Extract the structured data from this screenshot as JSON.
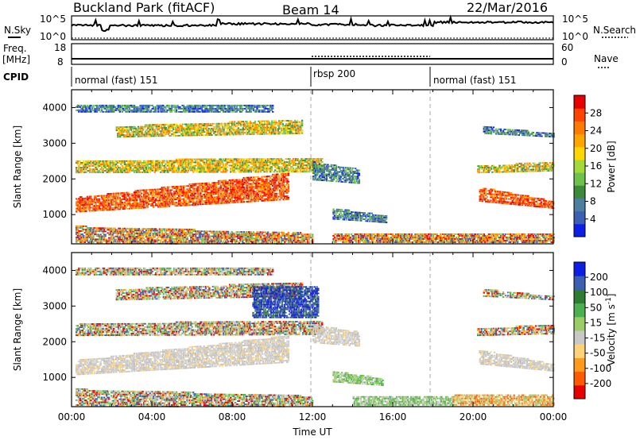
{
  "header": {
    "site_title": "Buckland Park (fitACF)",
    "beam_label": "Beam 14",
    "date_label": "22/Mar/2016"
  },
  "nsky": {
    "label": "N.Sky",
    "y_top_label": "10^5",
    "y_bottom_label": "10^0",
    "right_top_label": "10^5",
    "right_bottom_label": "10^0",
    "right_label": "N.Search"
  },
  "freq": {
    "label_line1": "Freq.",
    "label_line2": "[MHz]",
    "ticks": [
      "18",
      "8"
    ],
    "right_ticks": [
      "60",
      "0"
    ],
    "right_label": "Nave"
  },
  "cpid": {
    "label": "CPID",
    "segments": [
      {
        "label": "normal (fast) 151",
        "start_hour": 0,
        "end_hour": 12
      },
      {
        "label": "rbsp 200",
        "start_hour": 12,
        "end_hour": 18
      },
      {
        "label": "normal (fast) 151",
        "start_hour": 18,
        "end_hour": 24
      }
    ]
  },
  "chart_data": [
    {
      "type": "heatmap",
      "name": "power-panel",
      "ylabel": "Slant Range [km]",
      "y_ticks": [
        1000,
        2000,
        3000,
        4000
      ],
      "ylim": [
        180,
        4500
      ],
      "xlim_hours": [
        0,
        24
      ],
      "colorbar": {
        "label": "Power [dB]",
        "ticks": [
          "4",
          "8",
          "12",
          "16",
          "20",
          "24",
          "28"
        ],
        "colors": [
          "#0d1ee6",
          "#3a5fb3",
          "#4d7f9f",
          "#3d8a3a",
          "#6cc24a",
          "#a5d93a",
          "#ffd700",
          "#ffa500",
          "#ff7a00",
          "#ff4500",
          "#e60000"
        ]
      },
      "bands": [
        {
          "x0": 0.2,
          "x1": 10.8,
          "y0": 1100,
          "y1": 1500,
          "y1end": 2200,
          "color_set": "strong"
        },
        {
          "x0": 0.2,
          "x1": 12.5,
          "y0": 2200,
          "y1": 2550,
          "y1end": 2600,
          "color_set": "medium"
        },
        {
          "x0": 2.2,
          "x1": 11.5,
          "y0": 3200,
          "y1": 3500,
          "y1end": 3700,
          "color_set": "medium"
        },
        {
          "x0": 0.2,
          "x1": 10.0,
          "y0": 3900,
          "y1": 4100,
          "y1end": 4100,
          "color_set": "weak"
        },
        {
          "x0": 12.0,
          "x1": 14.3,
          "y0": 2000,
          "y1": 2500,
          "y1end": 2300,
          "color_set": "weak"
        },
        {
          "x0": 13.0,
          "x1": 15.7,
          "y0": 900,
          "y1": 1200,
          "y1end": 1000,
          "color_set": "weak"
        },
        {
          "x0": 13.0,
          "x1": 24.0,
          "y0": 200,
          "y1": 500,
          "y1end": 500,
          "color_set": "low"
        },
        {
          "x0": 20.3,
          "x1": 24.0,
          "y0": 1400,
          "y1": 1800,
          "y1end": 1400,
          "color_set": "strong"
        },
        {
          "x0": 20.2,
          "x1": 24.0,
          "y0": 2200,
          "y1": 2400,
          "y1end": 2500,
          "color_set": "medium"
        },
        {
          "x0": 20.5,
          "x1": 24.0,
          "y0": 3300,
          "y1": 3500,
          "y1end": 3300,
          "color_set": "weak"
        },
        {
          "x0": 0.2,
          "x1": 12.0,
          "y0": 200,
          "y1": 700,
          "y1end": 500,
          "color_set": "low"
        }
      ]
    },
    {
      "type": "heatmap",
      "name": "velocity-panel",
      "ylabel": "Slant Range [km]",
      "y_ticks": [
        1000,
        2000,
        3000,
        4000
      ],
      "ylim": [
        180,
        4500
      ],
      "xlim_hours": [
        0,
        24
      ],
      "xlabel": "Time UT",
      "x_tick_labels": [
        "00:00",
        "04:00",
        "08:00",
        "12:00",
        "16:00",
        "20:00",
        "00:00"
      ],
      "colorbar": {
        "label": "Velocity [m s^-1]",
        "ticks": [
          "-200",
          "-100",
          "-50",
          "-15",
          "15",
          "50",
          "100",
          "200"
        ],
        "colors": [
          "#e60000",
          "#ff5a00",
          "#ff9a1a",
          "#ffd27a",
          "#c8c8c8",
          "#9ccc65",
          "#4caf50",
          "#2e7d32",
          "#3a5fb3",
          "#0d1ee6"
        ]
      },
      "bands": [
        {
          "x0": 0.2,
          "x1": 10.8,
          "y0": 1100,
          "y1": 1500,
          "y1end": 2200,
          "color_set": "gray"
        },
        {
          "x0": 0.2,
          "x1": 12.5,
          "y0": 2200,
          "y1": 2550,
          "y1end": 2600,
          "color_set": "mixed"
        },
        {
          "x0": 2.2,
          "x1": 11.5,
          "y0": 3200,
          "y1": 3500,
          "y1end": 3700,
          "color_set": "mixed"
        },
        {
          "x0": 0.2,
          "x1": 10.0,
          "y0": 3900,
          "y1": 4100,
          "y1end": 4100,
          "color_set": "mixed"
        },
        {
          "x0": 9.0,
          "x1": 12.3,
          "y0": 2700,
          "y1": 3600,
          "y1end": 3600,
          "color_set": "blue"
        },
        {
          "x0": 12.0,
          "x1": 14.3,
          "y0": 2000,
          "y1": 2500,
          "y1end": 2300,
          "color_set": "gray"
        },
        {
          "x0": 13.0,
          "x1": 15.5,
          "y0": 900,
          "y1": 1200,
          "y1end": 1000,
          "color_set": "green"
        },
        {
          "x0": 14.0,
          "x1": 19.0,
          "y0": 250,
          "y1": 500,
          "y1end": 500,
          "color_set": "green"
        },
        {
          "x0": 19.0,
          "x1": 24.0,
          "y0": 250,
          "y1": 550,
          "y1end": 550,
          "color_set": "orange"
        },
        {
          "x0": 20.3,
          "x1": 24.0,
          "y0": 1400,
          "y1": 1800,
          "y1end": 1400,
          "color_set": "gray"
        },
        {
          "x0": 20.2,
          "x1": 24.0,
          "y0": 2200,
          "y1": 2400,
          "y1end": 2500,
          "color_set": "mixed"
        },
        {
          "x0": 20.5,
          "x1": 24.0,
          "y0": 3300,
          "y1": 3500,
          "y1end": 3300,
          "color_set": "mixed"
        },
        {
          "x0": 0.2,
          "x1": 12.0,
          "y0": 200,
          "y1": 700,
          "y1end": 500,
          "color_set": "mixed"
        }
      ]
    }
  ]
}
